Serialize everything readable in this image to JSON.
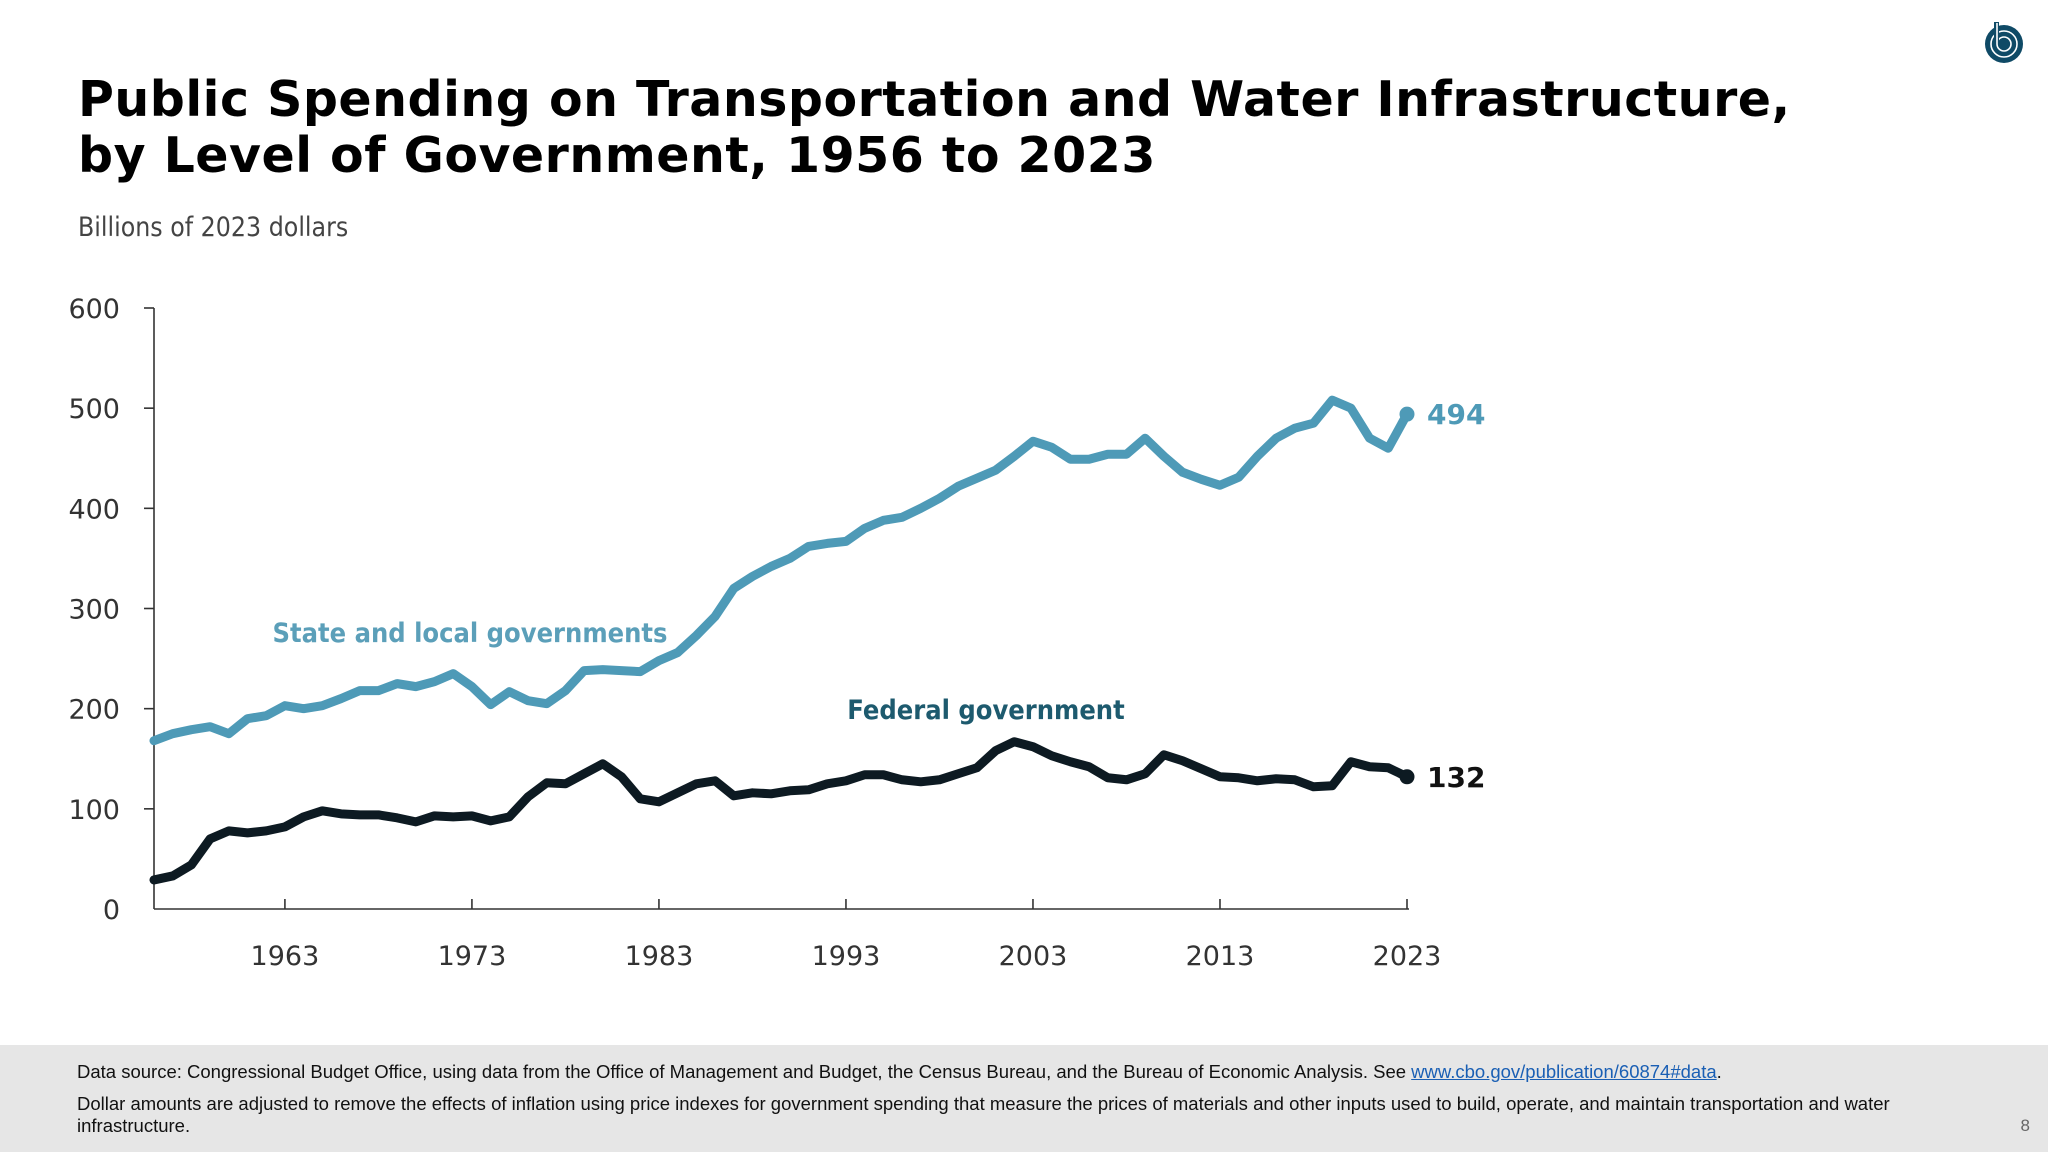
{
  "title_line1": "Public Spending on Transportation and Water Infrastructure,",
  "title_line2": "by Level of Government, 1956 to 2023",
  "subtitle": "Billions of 2023 dollars",
  "logo": "CBO",
  "chart_data": {
    "type": "line",
    "title": "Public Spending on Transportation and Water Infrastructure, by Level of Government, 1956 to 2023",
    "ylabel": "Billions of 2023 dollars",
    "xlabel": "",
    "xlim": [
      1956,
      2023
    ],
    "ylim": [
      0,
      600
    ],
    "yticks": [
      0,
      100,
      200,
      300,
      400,
      500,
      600
    ],
    "xticks": [
      1963,
      1973,
      1983,
      1993,
      2003,
      2013,
      2023
    ],
    "grid": false,
    "legend": "inline labels",
    "x": [
      1956,
      1957,
      1958,
      1959,
      1960,
      1961,
      1962,
      1963,
      1964,
      1965,
      1966,
      1967,
      1968,
      1969,
      1970,
      1971,
      1972,
      1973,
      1974,
      1975,
      1976,
      1977,
      1978,
      1979,
      1980,
      1981,
      1982,
      1983,
      1984,
      1985,
      1986,
      1987,
      1988,
      1989,
      1990,
      1991,
      1992,
      1993,
      1994,
      1995,
      1996,
      1997,
      1998,
      1999,
      2000,
      2001,
      2002,
      2003,
      2004,
      2005,
      2006,
      2007,
      2008,
      2009,
      2010,
      2011,
      2012,
      2013,
      2014,
      2015,
      2016,
      2017,
      2018,
      2019,
      2020,
      2021,
      2022,
      2023
    ],
    "series": [
      {
        "name": "State and local governments",
        "color": "#4e9ab7",
        "label_color": "#5b9fb9",
        "end_label": "494",
        "values": [
          168,
          175,
          179,
          182,
          175,
          190,
          193,
          203,
          200,
          203,
          210,
          218,
          218,
          225,
          222,
          227,
          235,
          222,
          204,
          217,
          208,
          205,
          218,
          238,
          239,
          238,
          237,
          248,
          256,
          273,
          292,
          320,
          332,
          342,
          350,
          362,
          365,
          367,
          380,
          388,
          391,
          400,
          410,
          422,
          430,
          438,
          452,
          467,
          461,
          449,
          449,
          454,
          454,
          470,
          452,
          436,
          429,
          423,
          431,
          452,
          470,
          480,
          485,
          508,
          500,
          470,
          460,
          494
        ]
      },
      {
        "name": "Federal government",
        "color": "#0d1a22",
        "label_color": "#1d5a6e",
        "end_label": "132",
        "values": [
          29,
          33,
          44,
          70,
          78,
          76,
          78,
          82,
          92,
          98,
          95,
          94,
          94,
          91,
          87,
          93,
          92,
          93,
          88,
          92,
          112,
          126,
          125,
          135,
          145,
          132,
          110,
          107,
          116,
          125,
          128,
          113,
          116,
          115,
          118,
          119,
          125,
          128,
          134,
          134,
          129,
          127,
          129,
          135,
          141,
          158,
          167,
          162,
          153,
          147,
          142,
          131,
          129,
          135,
          154,
          148,
          140,
          132,
          131,
          128,
          130,
          129,
          122,
          123,
          147,
          142,
          141,
          132
        ]
      }
    ]
  },
  "footer": {
    "source_text": "Data source: Congressional Budget Office, using data from the Office of Management and Budget, the Census Bureau, and the Bureau of Economic Analysis. See ",
    "source_link": "www.cbo.gov/publication/60874#data",
    "source_end": ".",
    "note": "Dollar amounts are adjusted to remove the effects of inflation using price indexes for government spending that measure the prices of materials and other inputs used to build, operate, and maintain transportation and water infrastructure.",
    "page_number": "8"
  }
}
